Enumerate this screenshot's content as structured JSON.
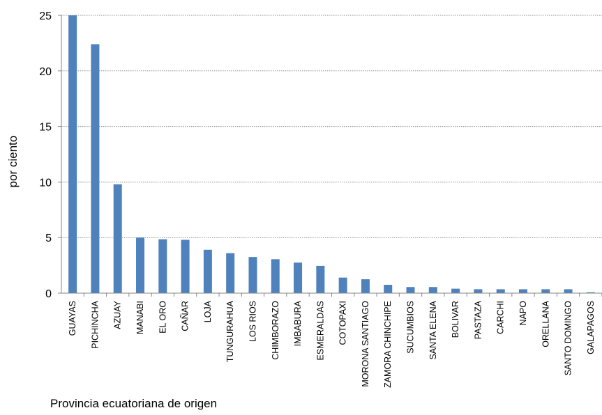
{
  "chart_data": {
    "type": "bar",
    "title": "",
    "xlabel": "Provincia ecuatoriana de origen",
    "ylabel": "por ciento",
    "ylim": [
      0,
      25
    ],
    "yticks": [
      0,
      5,
      10,
      15,
      20,
      25
    ],
    "grid": true,
    "bar_color": "#4F81BD",
    "grid_color": "#8C8C8C",
    "categories": [
      "GUAYAS",
      "PICHINCHA",
      "AZUAY",
      "MANABI",
      "EL ORO",
      "CAÑAR",
      "LOJA",
      "TUNGURAHUA",
      "LOS RIOS",
      "CHIMBORAZO",
      "IMBABURA",
      "ESMERALDAS",
      "COTOPAXI",
      "MORONA SANTIAGO",
      "ZAMORA CHINCHIPE",
      "SUCUMBIOS",
      "SANTA ELENA",
      "BOLIVAR",
      "PASTAZA",
      "CARCHI",
      "NAPO",
      "ORELLANA",
      "SANTO DOMINGO",
      "GALAPAGOS"
    ],
    "values": [
      25.0,
      22.4,
      9.8,
      5.0,
      4.85,
      4.8,
      3.9,
      3.6,
      3.25,
      3.05,
      2.75,
      2.45,
      1.4,
      1.25,
      0.75,
      0.55,
      0.55,
      0.4,
      0.35,
      0.35,
      0.35,
      0.35,
      0.35,
      0.08
    ]
  }
}
